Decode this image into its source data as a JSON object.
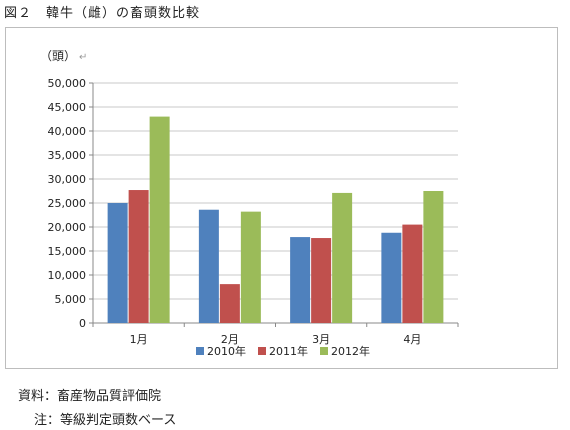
{
  "figure_title": "図２　韓牛（雌）の畜頭数比較",
  "unit_label": "（頭）",
  "unit_mark": "↵",
  "colors": {
    "2010年": "#4f81bd",
    "2011年": "#c0504d",
    "2012年": "#9bbb59"
  },
  "chart_data": {
    "type": "bar",
    "categories": [
      "1月",
      "2月",
      "3月",
      "4月"
    ],
    "series": [
      {
        "name": "2010年",
        "values": [
          25000,
          23600,
          17900,
          18800
        ]
      },
      {
        "name": "2011年",
        "values": [
          27700,
          8100,
          17700,
          20500
        ]
      },
      {
        "name": "2012年",
        "values": [
          43000,
          23200,
          27100,
          27500
        ]
      }
    ],
    "title": "",
    "xlabel": "",
    "ylabel": "（頭）",
    "ylim": [
      0,
      50000
    ],
    "yticks": [
      "0",
      "5,000",
      "10,000",
      "15,000",
      "20,000",
      "25,000",
      "30,000",
      "35,000",
      "40,000",
      "45,000",
      "50,000"
    ],
    "grid": true,
    "legend_position": "bottom"
  },
  "source_text": "資料：畜産物品質評価院",
  "note_text": "注：等級判定頭数ベース"
}
